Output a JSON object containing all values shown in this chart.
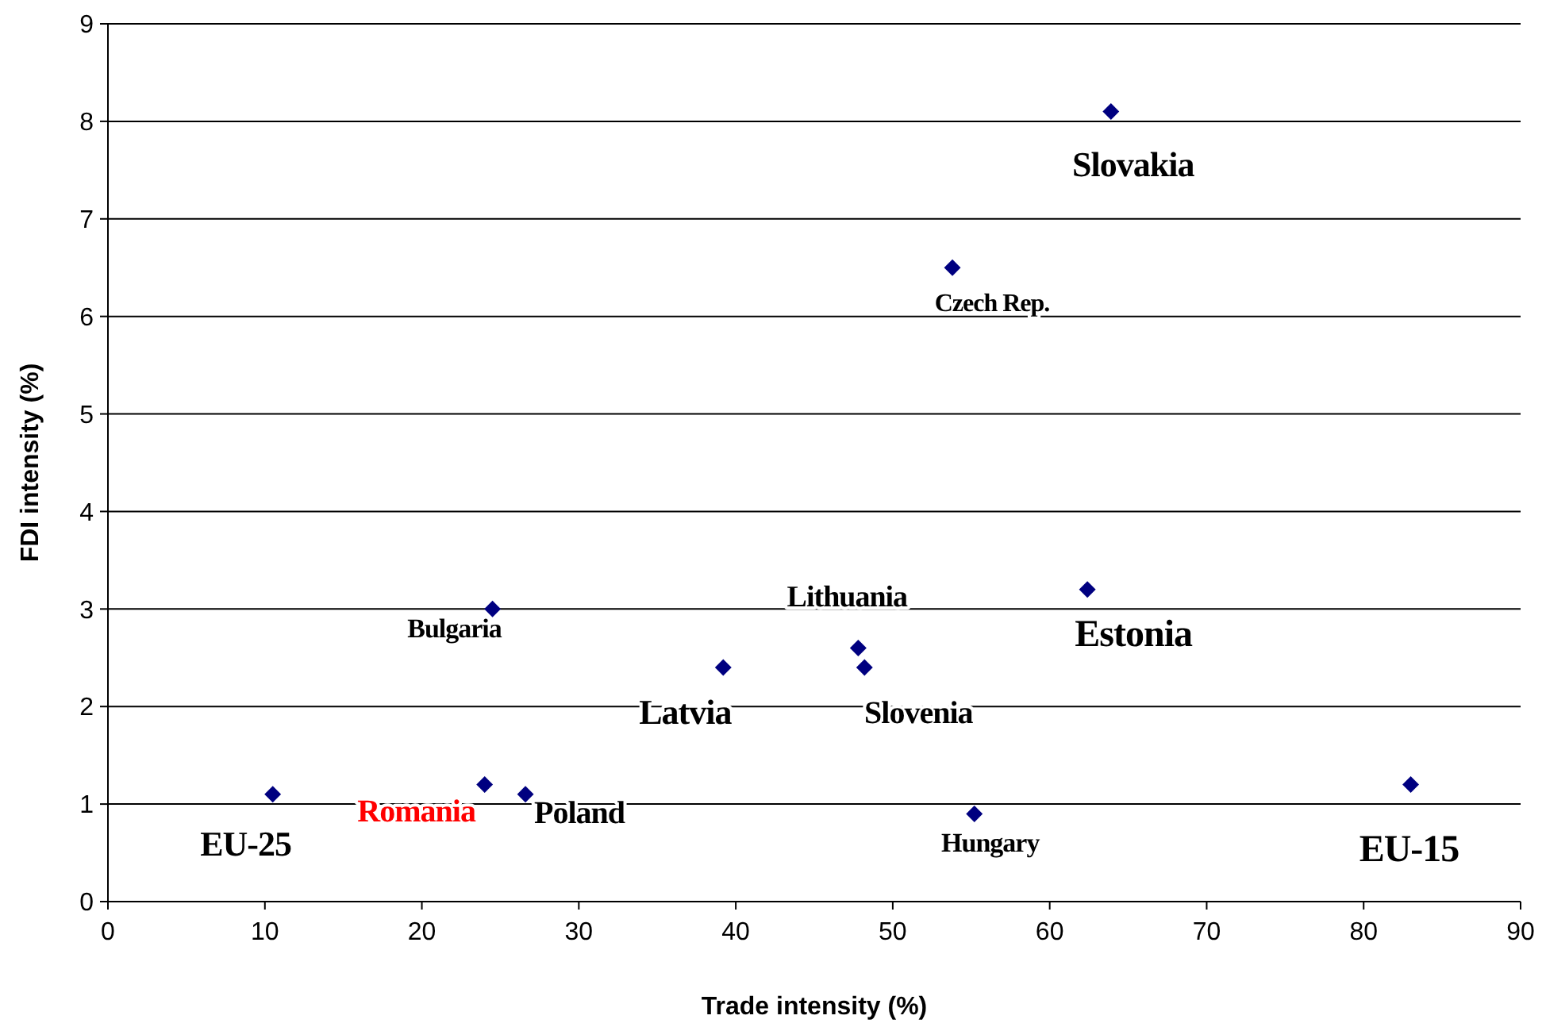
{
  "chart_data": {
    "type": "scatter",
    "xlabel": "Trade intensity (%)",
    "ylabel": "FDI intensity (%)",
    "x": [
      10.5,
      24.0,
      26.6,
      24.5,
      39.2,
      47.8,
      48.2,
      55.2,
      53.8,
      63.9,
      62.4,
      83.0
    ],
    "series": [
      {
        "color": "#000080",
        "values": [
          1.1,
          1.2,
          1.1,
          3.0,
          2.4,
          2.6,
          2.4,
          0.9,
          6.5,
          8.1,
          3.2,
          1.2
        ]
      }
    ],
    "annotations": [
      {
        "text": "EU-25",
        "x": 10.5,
        "y": 1.1
      },
      {
        "text": "Romania",
        "x": 24.0,
        "y": 1.2
      },
      {
        "text": "Poland",
        "x": 26.6,
        "y": 1.1
      },
      {
        "text": "Bulgaria",
        "x": 24.5,
        "y": 3.0
      },
      {
        "text": "Latvia",
        "x": 39.2,
        "y": 2.4
      },
      {
        "text": "Lithuania",
        "x": 47.8,
        "y": 2.6
      },
      {
        "text": "Slovenia",
        "x": 48.2,
        "y": 2.4
      },
      {
        "text": "Hungary",
        "x": 55.2,
        "y": 0.9
      },
      {
        "text": "Czech Rep.",
        "x": 53.8,
        "y": 6.5
      },
      {
        "text": "Slovakia",
        "x": 63.9,
        "y": 8.1
      },
      {
        "text": "Estonia",
        "x": 62.4,
        "y": 3.2
      },
      {
        "text": "EU-15",
        "x": 83.0,
        "y": 1.2
      }
    ],
    "xlim": [
      0,
      90
    ],
    "xticks": [
      0,
      10,
      20,
      30,
      40,
      50,
      60,
      70,
      80,
      90
    ],
    "ylim": [
      0,
      9
    ],
    "yticks": [
      0,
      1,
      2,
      3,
      4,
      5,
      6,
      7,
      8,
      9
    ],
    "grid": "y",
    "marker": "diamond"
  }
}
